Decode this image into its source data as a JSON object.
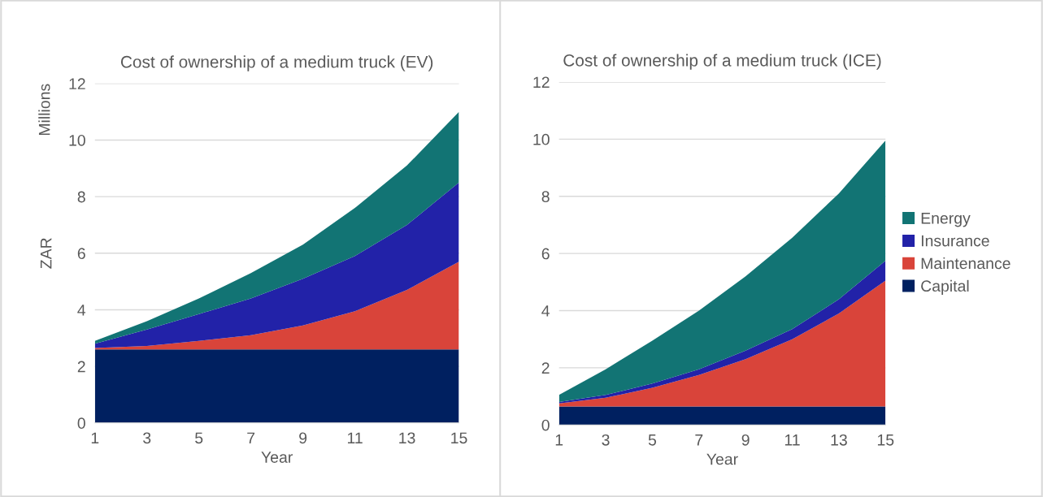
{
  "chart_data": [
    {
      "type": "area",
      "title": "Cost of ownership of a medium truck (EV)",
      "xlabel": "Year",
      "ylabel": "ZAR",
      "annotations": [
        "Millions"
      ],
      "stacked": true,
      "x": [
        1,
        3,
        5,
        7,
        9,
        11,
        13,
        15
      ],
      "xlim": [
        1,
        15
      ],
      "xticks": [
        1,
        3,
        5,
        7,
        9,
        11,
        13,
        15
      ],
      "ylim": [
        0,
        12
      ],
      "yticks": [
        0,
        2,
        4,
        6,
        8,
        10,
        12
      ],
      "grid": "y",
      "legend": false,
      "series": [
        {
          "color": "#002060",
          "values": [
            2.6,
            2.6,
            2.6,
            2.6,
            2.6,
            2.6,
            2.6,
            2.6
          ]
        },
        {
          "color": "#d9443a",
          "values": [
            0.05,
            0.12,
            0.3,
            0.5,
            0.85,
            1.35,
            2.1,
            3.1
          ]
        },
        {
          "color": "#2222a8",
          "values": [
            0.15,
            0.58,
            0.95,
            1.3,
            1.65,
            1.95,
            2.3,
            2.8
          ]
        },
        {
          "color": "#127474",
          "values": [
            0.1,
            0.3,
            0.55,
            0.9,
            1.2,
            1.7,
            2.1,
            2.5
          ]
        }
      ]
    },
    {
      "type": "area",
      "title": "Cost of ownership of a medium truck (ICE)",
      "xlabel": "Year",
      "stacked": true,
      "x": [
        1,
        3,
        5,
        7,
        9,
        11,
        13,
        15
      ],
      "xlim": [
        1,
        15
      ],
      "xticks": [
        1,
        3,
        5,
        7,
        9,
        11,
        13,
        15
      ],
      "ylim": [
        0,
        12
      ],
      "yticks": [
        0,
        2,
        4,
        6,
        8,
        10,
        12
      ],
      "grid": "y",
      "legend": "right",
      "series": [
        {
          "name": "Capital",
          "color": "#002060",
          "values": [
            0.65,
            0.65,
            0.65,
            0.65,
            0.65,
            0.65,
            0.65,
            0.65
          ]
        },
        {
          "name": "Maintenance",
          "color": "#d9443a",
          "values": [
            0.1,
            0.3,
            0.65,
            1.1,
            1.65,
            2.35,
            3.25,
            4.4
          ]
        },
        {
          "name": "Insurance",
          "color": "#2222a8",
          "values": [
            0.05,
            0.1,
            0.15,
            0.2,
            0.3,
            0.35,
            0.5,
            0.7
          ]
        },
        {
          "name": "Energy",
          "color": "#127474",
          "values": [
            0.25,
            0.9,
            1.5,
            2.05,
            2.6,
            3.2,
            3.7,
            4.2
          ]
        }
      ]
    }
  ]
}
